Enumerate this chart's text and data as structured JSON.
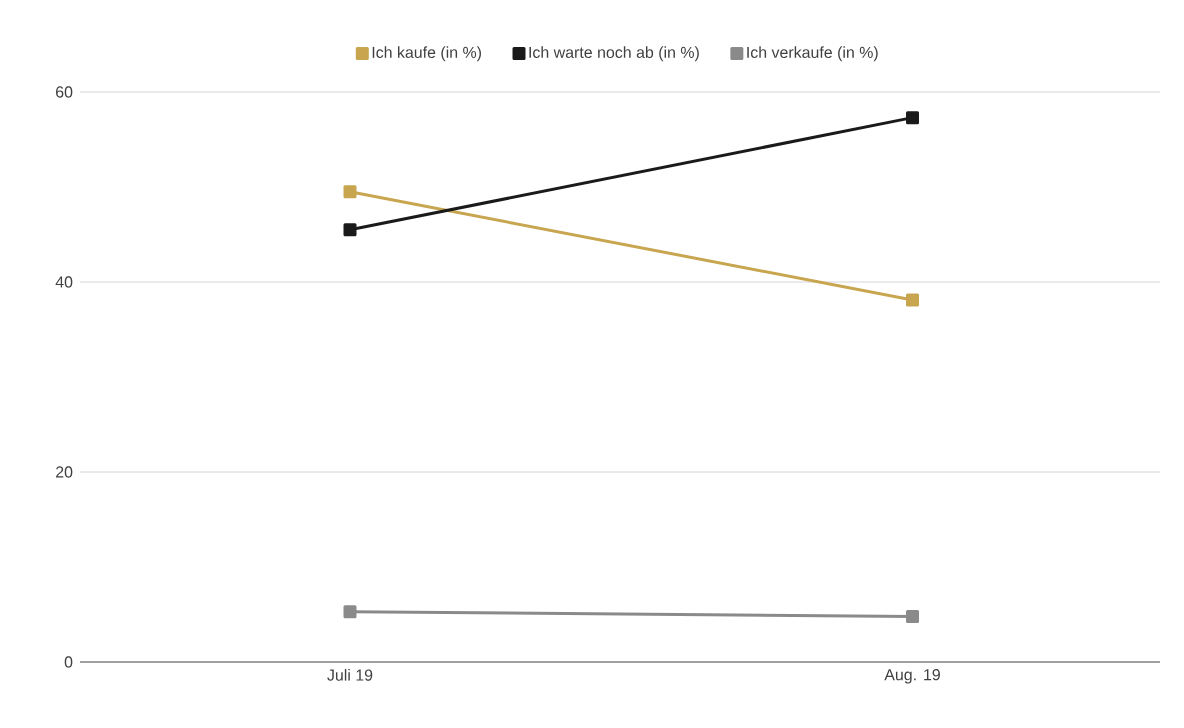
{
  "chart_data": {
    "type": "line",
    "categories": [
      "Juli 19",
      "Aug. 19"
    ],
    "series": [
      {
        "name": "Ich kaufe (in %)",
        "color": "#c8a54f",
        "values": [
          49.5,
          38.1
        ]
      },
      {
        "name": "Ich warte noch ab (in %)",
        "color": "#1a1a1a",
        "values": [
          45.5,
          57.3
        ]
      },
      {
        "name": "Ich verkaufe (in %)",
        "color": "#8a8a8a",
        "values": [
          5.3,
          4.8
        ]
      }
    ],
    "ylim": [
      0,
      60
    ],
    "yticks": [
      0,
      20,
      40,
      60
    ],
    "grid": "y",
    "legend": "top",
    "marker": "square"
  }
}
